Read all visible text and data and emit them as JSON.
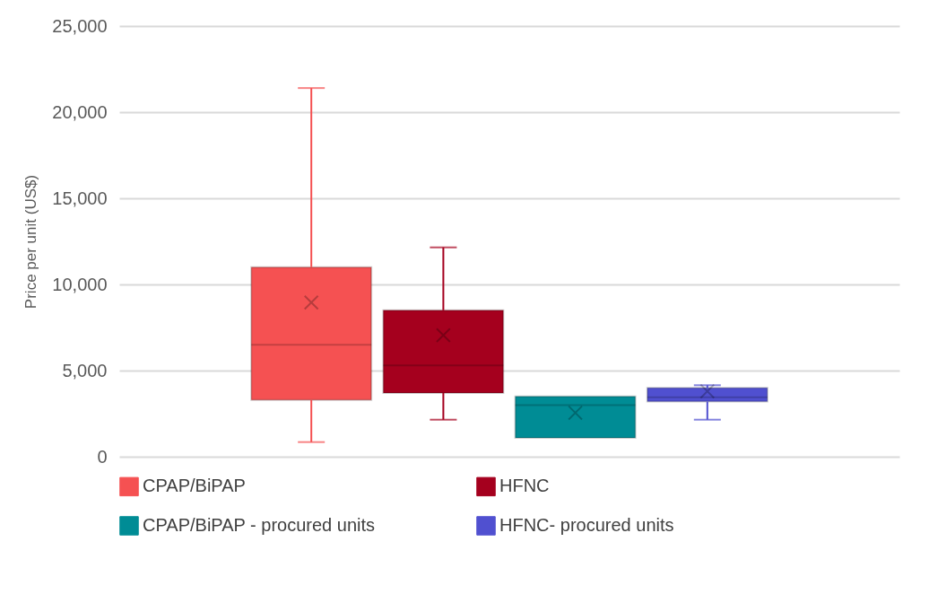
{
  "chart_data": {
    "type": "box",
    "ylabel": "Price per unit (US$)",
    "categories": [
      null
    ],
    "ylim": [
      0,
      25000
    ],
    "yticks": [
      0,
      {
        "value": 5000,
        "label": "5,000"
      },
      {
        "value": 10000,
        "label": "10,000"
      },
      {
        "value": 15000,
        "label": "15,000"
      },
      {
        "value": 20000,
        "label": "20,000"
      },
      {
        "value": 25000,
        "label": "25,000"
      }
    ],
    "grid": "y",
    "legend": "bottom",
    "tick_labels": "y",
    "series": [
      {
        "name": "CPAP/BiPAP",
        "color": "#f55152",
        "boxes": [
          {
            "low": 850,
            "q1": 3300,
            "median": 6500,
            "q3": 11000,
            "high": 21400,
            "mean": 8950
          }
        ]
      },
      {
        "name": "HFNC",
        "color": "#a5001e",
        "boxes": [
          {
            "low": 2150,
            "q1": 3700,
            "median": 5300,
            "q3": 8500,
            "high": 12150,
            "mean": 7050
          }
        ]
      },
      {
        "name": "CPAP/BiPAP - procured units",
        "color": "#008c95",
        "boxes": [
          {
            "low": 1100,
            "q1": 1100,
            "median": 3000,
            "q3": 3500,
            "high": 3500,
            "mean": 2550
          }
        ]
      },
      {
        "name": "HFNC- procured units",
        "color": "#5050d0",
        "boxes": [
          {
            "low": 2150,
            "q1": 3200,
            "median": 3450,
            "q3": 4000,
            "high": 4150,
            "mean": 3800
          }
        ]
      }
    ]
  }
}
